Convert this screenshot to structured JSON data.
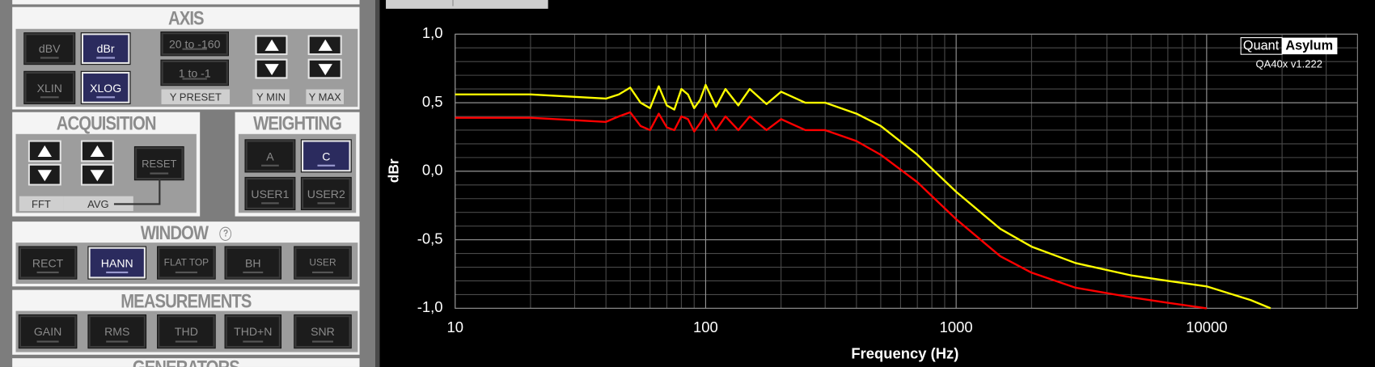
{
  "panel": {
    "axis": {
      "title": "AXIS",
      "buttons": [
        "dBV",
        "dBr",
        "XLIN",
        "XLOG"
      ],
      "presets": [
        "20 to -160",
        "1 to -1"
      ],
      "labels": [
        "Y PRESET",
        "Y MIN",
        "Y MAX"
      ]
    },
    "acquisition": {
      "title": "ACQUISITION",
      "buttons": [
        "RESET"
      ],
      "labels": [
        "FFT",
        "AVG"
      ]
    },
    "weighting": {
      "title": "WEIGHTING",
      "buttons": [
        "A",
        "C",
        "USER1",
        "USER2"
      ]
    },
    "window": {
      "title": "WINDOW",
      "help": "?",
      "buttons": [
        "RECT",
        "HANN",
        "FLAT TOP",
        "BH",
        "USER"
      ]
    },
    "measurements": {
      "title": "MEASUREMENTS",
      "buttons": [
        "GAIN",
        "RMS",
        "THD",
        "THD+N",
        "SNR"
      ]
    },
    "generators": {
      "title": "GENERATORS"
    }
  },
  "brand": {
    "logo": [
      "Quant",
      "Asylum"
    ],
    "version": "QA40x v1.222"
  },
  "chart_data": {
    "type": "line",
    "xlabel": "Frequency (Hz)",
    "ylabel": "dBr",
    "log_x": true,
    "grid": true,
    "minor_grid": true,
    "x": [
      10,
      20,
      40,
      45,
      50,
      55,
      60,
      65,
      70,
      75,
      80,
      85,
      90,
      95,
      100,
      110,
      120,
      135,
      150,
      175,
      200,
      250,
      300,
      400,
      500,
      700,
      1000,
      1500,
      2000,
      3000,
      5000,
      7000,
      10000,
      15000,
      18000
    ],
    "series": [
      {
        "color": "#ffff00",
        "values": [
          0.56,
          0.56,
          0.53,
          0.56,
          0.61,
          0.5,
          0.46,
          0.62,
          0.48,
          0.45,
          0.6,
          0.56,
          0.46,
          0.52,
          0.63,
          0.47,
          0.6,
          0.48,
          0.6,
          0.49,
          0.58,
          0.5,
          0.5,
          0.42,
          0.33,
          0.12,
          -0.15,
          -0.42,
          -0.55,
          -0.67,
          -0.76,
          -0.8,
          -0.84,
          -0.94,
          -1.0
        ]
      },
      {
        "color": "#ff0000",
        "values": [
          0.39,
          0.39,
          0.36,
          0.4,
          0.43,
          0.33,
          0.3,
          0.42,
          0.32,
          0.3,
          0.4,
          0.38,
          0.29,
          0.35,
          0.42,
          0.3,
          0.4,
          0.3,
          0.4,
          0.3,
          0.38,
          0.3,
          0.3,
          0.22,
          0.12,
          -0.08,
          -0.35,
          -0.62,
          -0.74,
          -0.85,
          -0.92,
          -0.96,
          -1.0,
          null,
          null
        ]
      }
    ],
    "xlim": [
      10,
      40000
    ],
    "xticks": [
      10,
      100,
      1000,
      10000
    ],
    "ylim": [
      -1,
      1
    ],
    "yticks": [
      {
        "value": -1,
        "label": "-1,0"
      },
      {
        "value": -0.5,
        "label": "-0,5"
      },
      {
        "value": 0,
        "label": "0,0"
      },
      {
        "value": 0.5,
        "label": "0,5"
      },
      {
        "value": 1,
        "label": "1,0"
      }
    ]
  }
}
